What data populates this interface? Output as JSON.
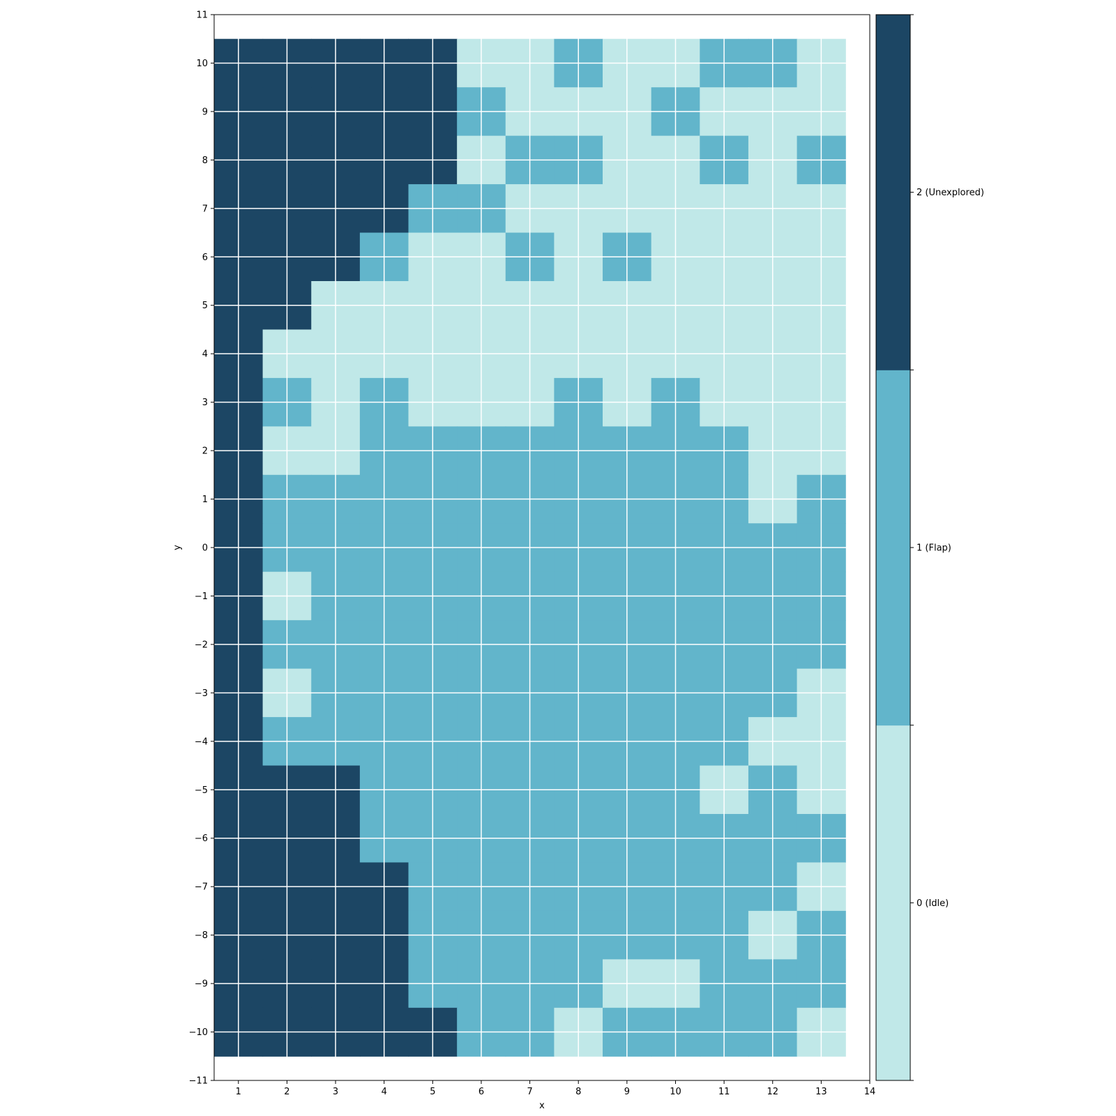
{
  "chart_data": {
    "type": "heatmap",
    "title": "",
    "xlabel": "x",
    "ylabel": "y",
    "xlim": [
      0.5,
      14
    ],
    "ylim": [
      -11,
      11
    ],
    "x_ticks": [
      1,
      2,
      3,
      4,
      5,
      6,
      7,
      8,
      9,
      10,
      11,
      12,
      13,
      14
    ],
    "y_ticks": [
      -11,
      -10,
      -9,
      -8,
      -7,
      -6,
      -5,
      -4,
      -3,
      -2,
      -1,
      0,
      1,
      2,
      3,
      4,
      5,
      6,
      7,
      8,
      9,
      10,
      11
    ],
    "grid": true,
    "x_columns": [
      1,
      2,
      3,
      4,
      5,
      6,
      7,
      8,
      9,
      10,
      11,
      12,
      13
    ],
    "y_rows_top_to_bottom": [
      10,
      9,
      8,
      7,
      6,
      5,
      4,
      3,
      2,
      1,
      0,
      -1,
      -2,
      -3,
      -4,
      -5,
      -6,
      -7,
      -8,
      -9,
      -10
    ],
    "grid_values": [
      [
        2,
        2,
        2,
        2,
        2,
        0,
        0,
        1,
        0,
        0,
        1,
        1,
        0
      ],
      [
        2,
        2,
        2,
        2,
        2,
        1,
        0,
        0,
        0,
        1,
        0,
        0,
        0
      ],
      [
        2,
        2,
        2,
        2,
        2,
        0,
        1,
        1,
        0,
        0,
        1,
        0,
        1
      ],
      [
        2,
        2,
        2,
        2,
        1,
        1,
        0,
        0,
        0,
        0,
        0,
        0,
        0
      ],
      [
        2,
        2,
        2,
        1,
        0,
        0,
        1,
        0,
        1,
        0,
        0,
        0,
        0
      ],
      [
        2,
        2,
        0,
        0,
        0,
        0,
        0,
        0,
        0,
        0,
        0,
        0,
        0
      ],
      [
        2,
        0,
        0,
        0,
        0,
        0,
        0,
        0,
        0,
        0,
        0,
        0,
        0
      ],
      [
        2,
        1,
        0,
        1,
        0,
        0,
        0,
        1,
        0,
        1,
        0,
        0,
        0
      ],
      [
        2,
        0,
        0,
        1,
        1,
        1,
        1,
        1,
        1,
        1,
        1,
        0,
        0
      ],
      [
        2,
        1,
        1,
        1,
        1,
        1,
        1,
        1,
        1,
        1,
        1,
        0,
        1
      ],
      [
        2,
        1,
        1,
        1,
        1,
        1,
        1,
        1,
        1,
        1,
        1,
        1,
        1
      ],
      [
        2,
        0,
        1,
        1,
        1,
        1,
        1,
        1,
        1,
        1,
        1,
        1,
        1
      ],
      [
        2,
        1,
        1,
        1,
        1,
        1,
        1,
        1,
        1,
        1,
        1,
        1,
        1
      ],
      [
        2,
        0,
        1,
        1,
        1,
        1,
        1,
        1,
        1,
        1,
        1,
        1,
        0
      ],
      [
        2,
        1,
        1,
        1,
        1,
        1,
        1,
        1,
        1,
        1,
        1,
        0,
        0
      ],
      [
        2,
        2,
        2,
        1,
        1,
        1,
        1,
        1,
        1,
        1,
        0,
        1,
        0
      ],
      [
        2,
        2,
        2,
        1,
        1,
        1,
        1,
        1,
        1,
        1,
        1,
        1,
        1
      ],
      [
        2,
        2,
        2,
        2,
        1,
        1,
        1,
        1,
        1,
        1,
        1,
        1,
        0
      ],
      [
        2,
        2,
        2,
        2,
        1,
        1,
        1,
        1,
        1,
        1,
        1,
        0,
        1
      ],
      [
        2,
        2,
        2,
        2,
        1,
        1,
        1,
        1,
        0,
        0,
        1,
        1,
        1
      ],
      [
        2,
        2,
        2,
        2,
        2,
        1,
        1,
        0,
        1,
        1,
        1,
        1,
        0
      ]
    ],
    "colorbar": {
      "levels": [
        {
          "value": 0,
          "label": "0 (Idle)",
          "color": "#c0e8e8"
        },
        {
          "value": 1,
          "label": "1 (Flap)",
          "color": "#62b5cb"
        },
        {
          "value": 2,
          "label": "2 (Unexplored)",
          "color": "#1c4664"
        }
      ]
    }
  }
}
